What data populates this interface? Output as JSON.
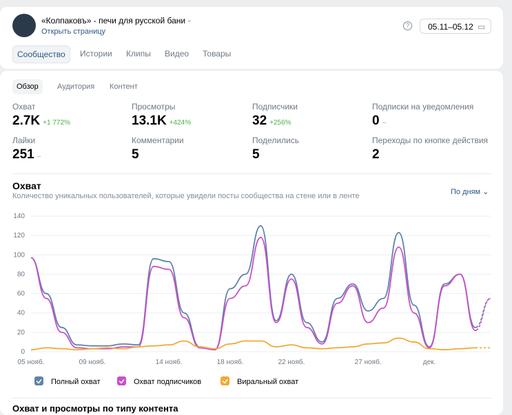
{
  "header": {
    "title": "«Колпаковъ» - печи для русской бани",
    "link": "Открыть страницу",
    "period": "05.11–05.12"
  },
  "tabs": [
    "Сообщество",
    "Истории",
    "Клипы",
    "Видео",
    "Товары"
  ],
  "subtabs": [
    "Обзор",
    "Аудитория",
    "Контент"
  ],
  "stats": [
    {
      "label": "Охват",
      "value": "2.7K",
      "change": "+1 772%"
    },
    {
      "label": "Просмотры",
      "value": "13.1K",
      "change": "+424%"
    },
    {
      "label": "Подписчики",
      "value": "32",
      "change": "+256%"
    },
    {
      "label": "Подписки на уведомления",
      "value": "0",
      "change": "–"
    },
    {
      "label": "Лайки",
      "value": "251",
      "change": "–"
    },
    {
      "label": "Комментарии",
      "value": "5"
    },
    {
      "label": "Поделились",
      "value": "5"
    },
    {
      "label": "Переходы по кнопке действия",
      "value": "2"
    }
  ],
  "section": {
    "title": "Охват",
    "subtitle": "Количество уникальных пользователей, которые увидели посты сообщества на стене или в ленте",
    "granularity": "По дням"
  },
  "next_section": "Охват и просмотры по типу контента",
  "chart_data": {
    "type": "line",
    "categories": [
      "05 нояб.",
      null,
      null,
      null,
      "09 нояб.",
      null,
      null,
      null,
      null,
      "14 нояб.",
      null,
      null,
      null,
      "18 нояб.",
      null,
      null,
      null,
      "22 нояб.",
      null,
      null,
      null,
      null,
      "27 нояб.",
      null,
      null,
      null,
      "дек.",
      null,
      null,
      null,
      null
    ],
    "series": [
      {
        "name": "Полный охват",
        "color": "#5f82aa",
        "values": [
          97,
          60,
          25,
          7,
          6,
          6,
          8,
          7,
          96,
          93,
          40,
          5,
          2,
          65,
          80,
          130,
          32,
          80,
          30,
          10,
          55,
          70,
          42,
          55,
          123,
          48,
          5,
          70,
          80,
          25,
          55
        ]
      },
      {
        "name": "Охват подписчиков",
        "color": "#c94fc9",
        "values": [
          97,
          55,
          20,
          4,
          3,
          3,
          5,
          5,
          88,
          85,
          35,
          4,
          2,
          55,
          68,
          118,
          30,
          75,
          25,
          8,
          50,
          68,
          30,
          45,
          108,
          40,
          4,
          68,
          80,
          22,
          55
        ]
      },
      {
        "name": "Виральный охват",
        "color": "#f1a935",
        "values": [
          2,
          4,
          3,
          2,
          3,
          4,
          3,
          5,
          6,
          7,
          11,
          5,
          3,
          8,
          11,
          11,
          5,
          7,
          4,
          3,
          4,
          5,
          8,
          9,
          14,
          10,
          3,
          2,
          3,
          4,
          4
        ]
      }
    ],
    "ylim": [
      0,
      140
    ],
    "yticks": [
      0,
      20,
      40,
      60,
      80,
      100,
      120,
      140
    ],
    "grid": true
  }
}
